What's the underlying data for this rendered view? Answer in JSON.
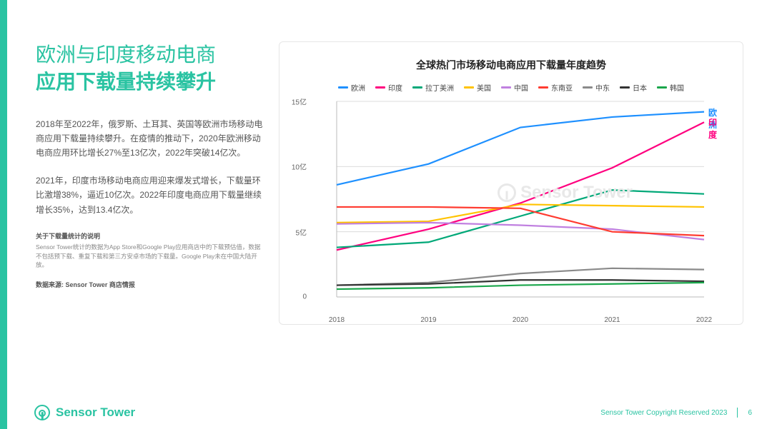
{
  "headline": {
    "line1": "欧洲与印度移动电商",
    "line2": "应用下载量持续攀升"
  },
  "para1": "2018年至2022年，俄罗斯、土耳其、英国等欧洲市场移动电商应用下载量持续攀升。在疫情的推动下，2020年欧洲移动电商应用环比增长27%至13亿次，2022年突破14亿次。",
  "para2": "2021年，印度市场移动电商应用迎来爆发式增长，下载量环比激增38%，逼近10亿次。2022年印度电商应用下载量继续增长35%，达到13.4亿次。",
  "note_title": "关于下载量统计的说明",
  "note_body": "Sensor Tower统计的数据为App Store和Google Play应用商店中的下载预估值，数据不包括预下载、重复下载和第三方安卓市场的下载量。Google Play未在中国大陆开放。",
  "source_label": "数据来源: Sensor Tower 商店情报",
  "logo_text": "Sensor Tower",
  "copyright": "Sensor Tower Copyright Reserved 2023",
  "page_number": "6",
  "accent_color": "#2ac3a2",
  "chart": {
    "type": "line",
    "title": "全球热门市场移动电商应用下载量年度趋势",
    "x_categories": [
      "2018",
      "2019",
      "2020",
      "2021",
      "2022"
    ],
    "ylim": [
      0,
      15
    ],
    "yticks": [
      0,
      5,
      10,
      15
    ],
    "ytick_labels": [
      "0",
      "5亿",
      "10亿",
      "15亿"
    ],
    "background_color": "#ffffff",
    "grid_color": "#dcdcdc",
    "axis_color": "#bbbbbb",
    "line_width": 2.2,
    "label_fontsize": 10,
    "title_fontsize": 14,
    "end_labels": [
      {
        "text": "欧洲",
        "color": "#1e90ff",
        "y": 14.2
      },
      {
        "text": "印度",
        "color": "#ff007f",
        "y": 13.4
      }
    ],
    "series": [
      {
        "name": "欧洲",
        "color": "#1e90ff",
        "values": [
          8.6,
          10.2,
          13.0,
          13.8,
          14.2
        ]
      },
      {
        "name": "印度",
        "color": "#ff007f",
        "values": [
          3.6,
          5.2,
          7.2,
          9.9,
          13.4
        ]
      },
      {
        "name": "拉丁美洲",
        "color": "#00a878",
        "values": [
          3.8,
          4.2,
          6.2,
          8.2,
          7.9
        ]
      },
      {
        "name": "美国",
        "color": "#ffc300",
        "values": [
          5.7,
          5.8,
          7.1,
          7.0,
          6.9
        ]
      },
      {
        "name": "中国",
        "color": "#c080e0",
        "values": [
          5.6,
          5.7,
          5.5,
          5.2,
          4.4
        ]
      },
      {
        "name": "东南亚",
        "color": "#ff3b30",
        "values": [
          6.9,
          6.9,
          6.8,
          5.0,
          4.7
        ]
      },
      {
        "name": "中东",
        "color": "#8a8a8a",
        "values": [
          0.9,
          1.1,
          1.8,
          2.2,
          2.1
        ]
      },
      {
        "name": "日本",
        "color": "#333333",
        "values": [
          0.9,
          1.0,
          1.3,
          1.3,
          1.2
        ]
      },
      {
        "name": "韩国",
        "color": "#1aa64b",
        "values": [
          0.6,
          0.7,
          0.9,
          1.0,
          1.1
        ]
      }
    ],
    "watermark": "Sensor Tower"
  }
}
